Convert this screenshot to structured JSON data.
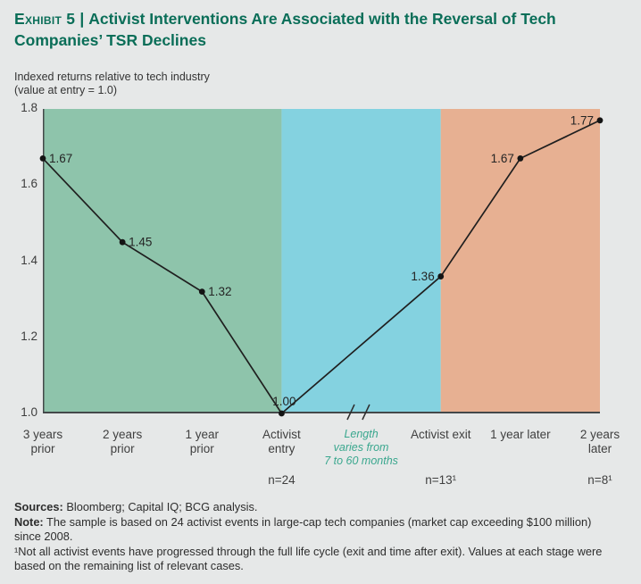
{
  "header": {
    "exhibit_label": "Exhibit 5",
    "separator": "|",
    "title": "Activist Interventions Are Associated with the Reversal of Tech Companies’ TSR Declines",
    "subtitle_line1": "Indexed returns relative to tech industry",
    "subtitle_line2": "(value at entry = 1.0)"
  },
  "chart_data": {
    "type": "line",
    "title": "Activist Interventions Are Associated with the Reversal of Tech Companies’ TSR Declines",
    "xlabel": "",
    "ylabel": "Indexed returns relative to tech industry (value at entry = 1.0)",
    "categories": [
      "3 years prior",
      "2 years prior",
      "1 year prior",
      "Activist entry",
      "Activist exit",
      "1 year later",
      "2 years later"
    ],
    "values": [
      1.67,
      1.45,
      1.32,
      1.0,
      1.36,
      1.67,
      1.77
    ],
    "point_labels": [
      "1.67",
      "1.45",
      "1.32",
      "1.00",
      "1.36",
      "1.67",
      "1.77"
    ],
    "label_sides": [
      "right",
      "right",
      "right",
      "above",
      "left",
      "left",
      "left"
    ],
    "x_units": [
      0,
      1,
      2,
      3,
      5,
      6,
      7
    ],
    "total_x_units": 7,
    "ylim": [
      1.0,
      1.8
    ],
    "yticks": [
      1.8,
      1.6,
      1.4,
      1.2,
      1.0
    ],
    "grid": false,
    "legend": "none",
    "gap_label_lines": [
      "Length",
      "varies from",
      "7 to 60 months"
    ],
    "gap_x_unit": 4,
    "axis_break_x_units": [
      3.87,
      4.06
    ],
    "regions": [
      {
        "name": "region-pre-entry",
        "from_unit": 0,
        "to_unit": 3,
        "color": "#8ec4ab"
      },
      {
        "name": "region-holding-period",
        "from_unit": 3,
        "to_unit": 5,
        "color": "#84d2e0"
      },
      {
        "name": "region-post-exit",
        "from_unit": 5,
        "to_unit": 7,
        "color": "#e7b092"
      }
    ],
    "n_labels": [
      {
        "x_unit": 3,
        "text": "n=24"
      },
      {
        "x_unit": 5,
        "text": "n=13¹"
      },
      {
        "x_unit": 7,
        "text": "n=8¹"
      }
    ],
    "colors": {
      "line": "#1f1f1f",
      "point": "#141414",
      "axis": "#44484a",
      "tick_text": "#3c3c3c",
      "point_label_text": "#242424",
      "gap_text": "#3aa78e"
    }
  },
  "footer": {
    "sources_label": "Sources:",
    "sources_text": " Bloomberg; Capital IQ; BCG analysis.",
    "note_label": "Note:",
    "note_text": " The sample is based on 24 activist events in large-cap tech companies (market cap exceeding $100 million) since 2008.",
    "footnote": "¹Not all activist events have progressed through the full life cycle (exit and time after exit). Values at each stage were based on the remaining list of relevant cases."
  }
}
